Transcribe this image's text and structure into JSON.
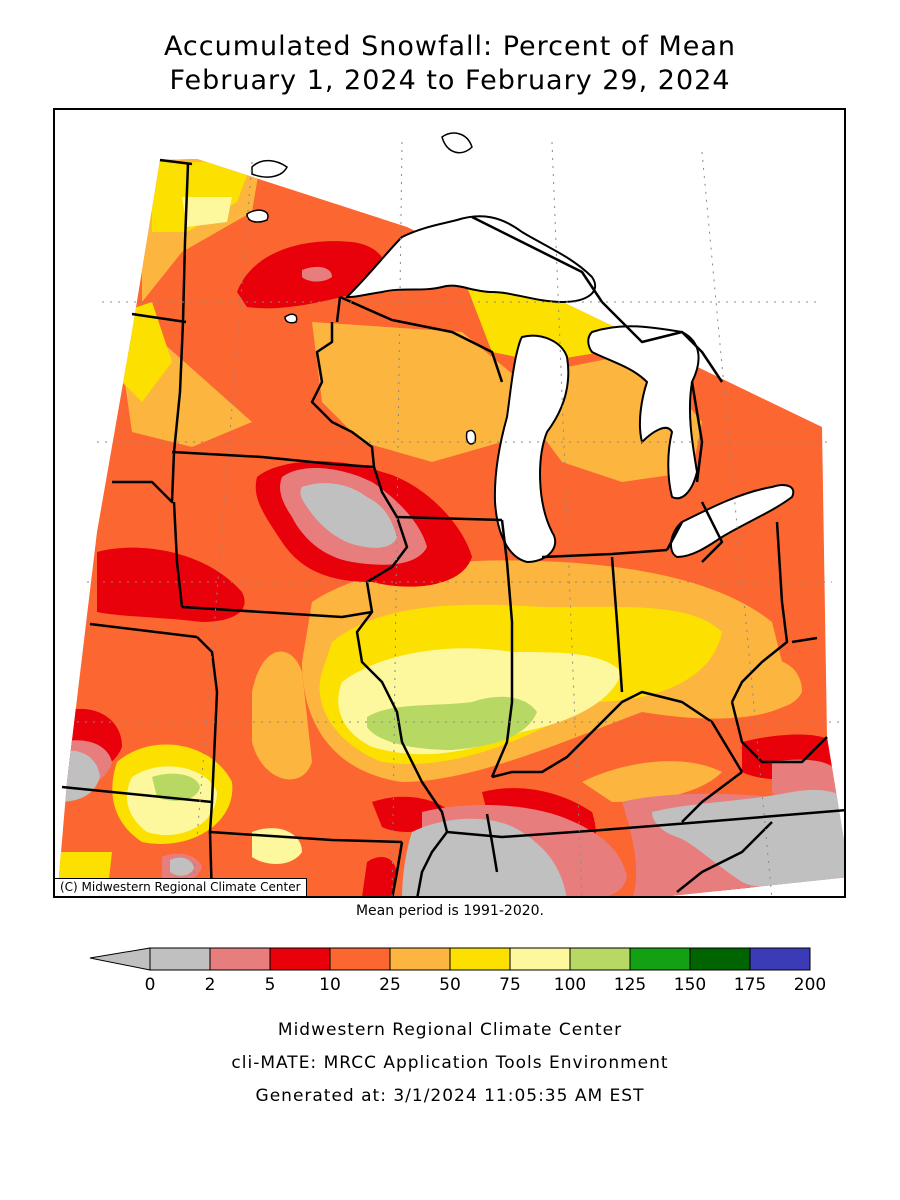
{
  "title": {
    "line1": "Accumulated Snowfall: Percent of Mean",
    "line2": "February 1, 2024 to February 29, 2024"
  },
  "map": {
    "copyright": "(C) Midwestern Regional Climate Center",
    "lake_color": "#ffffff",
    "border_color": "#000000"
  },
  "mean_note": "Mean period is 1991-2020.",
  "legend": {
    "bins": [
      {
        "from": "0",
        "to": "2",
        "color": "#c0c0c0"
      },
      {
        "from": "2",
        "to": "5",
        "color": "#e87d7d"
      },
      {
        "from": "5",
        "to": "10",
        "color": "#e8000b"
      },
      {
        "from": "10",
        "to": "25",
        "color": "#fc6630"
      },
      {
        "from": "25",
        "to": "50",
        "color": "#fcb53e"
      },
      {
        "from": "50",
        "to": "75",
        "color": "#fce000"
      },
      {
        "from": "75",
        "to": "100",
        "color": "#fdf89e"
      },
      {
        "from": "100",
        "to": "125",
        "color": "#b7d964"
      },
      {
        "from": "125",
        "to": "150",
        "color": "#13a013"
      },
      {
        "from": "150",
        "to": "175",
        "color": "#006400"
      },
      {
        "from": "175",
        "to": "200",
        "color": "#3b3bb7"
      }
    ],
    "tick_labels": [
      "0",
      "2",
      "5",
      "10",
      "25",
      "50",
      "75",
      "100",
      "125",
      "150",
      "175",
      "200"
    ]
  },
  "footer": {
    "line1": "Midwestern Regional Climate Center",
    "line2": "cli-MATE: MRCC Application Tools Environment",
    "line3": "Generated at: 3/1/2024 11:05:35 AM EST"
  }
}
